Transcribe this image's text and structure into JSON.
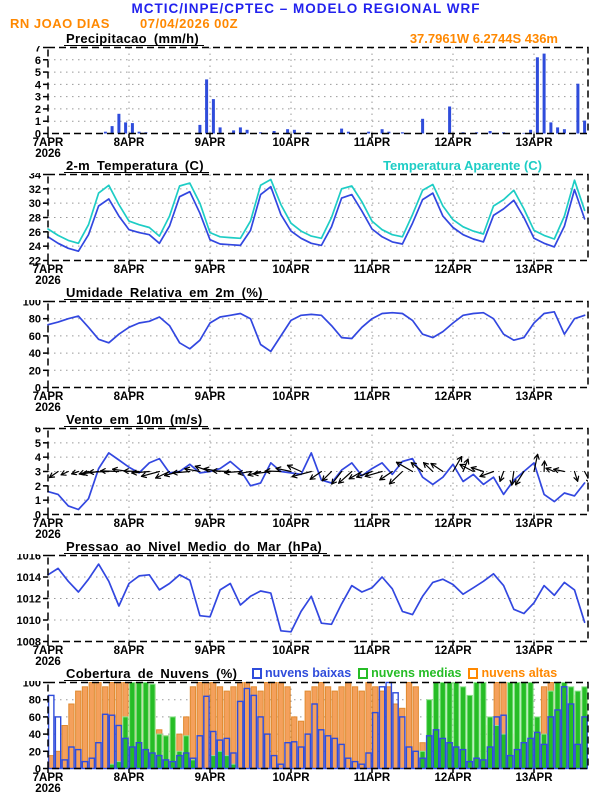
{
  "header": {
    "model_title": "MCTIC/INPE/CPTEC – MODELO REGIONAL WRF",
    "station": "RN JOAO DIAS",
    "run_datetime": "07/04/2026 00Z",
    "location": "37.7961W 6.2744S 436m"
  },
  "colors": {
    "header_blue": "#2222ee",
    "orange": "#ff8800",
    "line_blue": "#3247e0",
    "cyan": "#1ecdc5",
    "bar_blue": "#2f4cdb",
    "green": "#26bd26",
    "green_light": "#8fe48f",
    "cloud_orange": "#f4a05c",
    "cloud_orange_edge": "#e08a30",
    "grid": "#999999"
  },
  "x_axis": {
    "day_labels": [
      "7APR",
      "8APR",
      "9APR",
      "10APR",
      "11APR",
      "12APR",
      "13APR"
    ],
    "year_label": "2026",
    "total_hours": 160
  },
  "chart_data": [
    {
      "id": "precipitation",
      "type": "bar",
      "title": "Precipitacao (mm/h)",
      "ylabel": "mm/h",
      "ylim": [
        0,
        7
      ],
      "ytick_step": 1,
      "step_hours": 2,
      "color_key": "bar_blue",
      "values": [
        0,
        0,
        0,
        0,
        0,
        0,
        0,
        0,
        0.15,
        0.6,
        1.6,
        0.9,
        0.85,
        0.15,
        0.1,
        0,
        0,
        0.05,
        0,
        0,
        0,
        0,
        0.7,
        4.4,
        2.8,
        0.5,
        0,
        0.25,
        0.5,
        0.3,
        0,
        0.1,
        0,
        0.2,
        0,
        0.35,
        0.3,
        0,
        0.1,
        0,
        0,
        0,
        0,
        0.4,
        0.15,
        0,
        0,
        0.15,
        0,
        0.35,
        0.15,
        0,
        0.1,
        0,
        0,
        1.2,
        0,
        0,
        0,
        2.2,
        0,
        0.1,
        0,
        0.1,
        0,
        0.2,
        0,
        0.1,
        0,
        0,
        0.05,
        0.3,
        6.2,
        6.5,
        0.9,
        0.5,
        0.35,
        0,
        4.05,
        1.05
      ]
    },
    {
      "id": "temperature",
      "type": "line",
      "title": "2-m Temperatura (C)",
      "legend_label": "Temperatura Aparente (C)",
      "ylim": [
        22,
        34
      ],
      "ytick_step": 2,
      "step_hours": 3,
      "series": [
        {
          "id": "temperatura-2m",
          "name": "2-m Temperatura (C)",
          "color_key": "line_blue",
          "values": [
            25.3,
            24.4,
            23.7,
            23.3,
            25.6,
            29.6,
            30.6,
            28.2,
            26.3,
            25.9,
            25.6,
            24.4,
            26.8,
            30.9,
            31.6,
            28.6,
            24.9,
            24.3,
            24.2,
            24.1,
            26.2,
            31.2,
            32.3,
            28.4,
            26.1,
            25.1,
            24.4,
            24.1,
            26.7,
            30.7,
            31.2,
            28.9,
            26.4,
            25.3,
            24.6,
            24.3,
            27.2,
            30.5,
            31.4,
            28.2,
            26.6,
            25.6,
            25.0,
            24.6,
            28.3,
            29.2,
            30.4,
            28.0,
            25.1,
            24.4,
            23.9,
            26.8,
            31.9,
            27.8
          ]
        },
        {
          "id": "temperatura-aparente",
          "name": "Temperatura Aparente (C)",
          "color_key": "cyan",
          "values": [
            26.4,
            25.5,
            24.8,
            24.4,
            27.0,
            31.4,
            32.5,
            29.8,
            27.5,
            27.0,
            26.6,
            25.4,
            28.2,
            32.4,
            32.8,
            30.0,
            25.9,
            25.3,
            25.2,
            25.1,
            27.5,
            32.5,
            33.3,
            29.8,
            27.2,
            26.1,
            25.4,
            25.1,
            28.0,
            32.0,
            32.4,
            30.2,
            27.5,
            26.3,
            25.6,
            25.3,
            28.4,
            31.8,
            32.6,
            29.6,
            27.7,
            26.7,
            26.1,
            25.7,
            29.6,
            30.5,
            31.8,
            29.2,
            26.2,
            25.5,
            25.0,
            28.2,
            33.2,
            29.0
          ]
        }
      ]
    },
    {
      "id": "humidity",
      "type": "line",
      "title": "Umidade Relativa em 2m (%)",
      "ylim": [
        0,
        100
      ],
      "ytick_step": 20,
      "step_hours": 3,
      "series": [
        {
          "id": "umidade",
          "name": "Umidade Relativa",
          "color_key": "line_blue",
          "values": [
            73,
            76,
            80,
            83,
            70,
            56,
            52,
            62,
            70,
            75,
            77,
            82,
            72,
            52,
            45,
            55,
            75,
            82,
            84,
            86,
            80,
            50,
            42,
            60,
            78,
            84,
            85,
            84,
            72,
            58,
            57,
            70,
            80,
            86,
            87,
            86,
            78,
            62,
            58,
            65,
            75,
            84,
            86,
            87,
            80,
            62,
            55,
            58,
            75,
            86,
            88,
            62,
            80,
            84
          ]
        }
      ]
    },
    {
      "id": "wind",
      "type": "wind",
      "title": "Vento em 10m (m/s)",
      "ylim": [
        0,
        6
      ],
      "ytick_step": 1,
      "step_hours": 3,
      "arrow_baseline": 3,
      "series": [
        {
          "id": "vento-10m",
          "name": "Vento em 10m",
          "color_key": "line_blue",
          "values": [
            1.6,
            1.4,
            0.6,
            0.35,
            1.1,
            3.2,
            4.3,
            3.8,
            3.3,
            2.9,
            3.6,
            3.9,
            2.9,
            3.0,
            3.5,
            2.9,
            3.0,
            3.2,
            3.7,
            3.1,
            2.0,
            2.2,
            3.6,
            3.0,
            2.9,
            2.8,
            4.3,
            2.4,
            2.2,
            3.1,
            3.6,
            2.7,
            3.2,
            3.6,
            2.8,
            3.7,
            3.9,
            2.6,
            2.1,
            2.6,
            3.5,
            2.3,
            2.8,
            2.1,
            2.6,
            1.4,
            2.4,
            3.0,
            3.6,
            1.4,
            0.9,
            1.5,
            1.3,
            2.2
          ]
        }
      ],
      "arrow_dirs_deg": [
        225,
        215,
        205,
        200,
        195,
        188,
        182,
        178,
        172,
        178,
        185,
        195,
        205,
        195,
        185,
        170,
        160,
        170,
        178,
        184,
        190,
        196,
        188,
        178,
        168,
        156,
        195,
        215,
        225,
        232,
        222,
        210,
        200,
        196,
        214,
        224,
        150,
        142,
        136,
        146,
        60,
        68,
        152,
        162,
        200,
        250,
        262,
        238,
        78,
        88,
        158,
        168,
        288,
        298
      ]
    },
    {
      "id": "pressure",
      "type": "line",
      "title": "Pressao ao Nivel Medio do Mar (hPa)",
      "ylim": [
        1008,
        1016
      ],
      "ytick_step": 2,
      "step_hours": 3,
      "series": [
        {
          "id": "pressao",
          "name": "Pressao ao Nivel Medio do Mar",
          "color_key": "line_blue",
          "values": [
            1014.2,
            1014.8,
            1013.6,
            1012.6,
            1013.8,
            1015.2,
            1013.6,
            1011.3,
            1013.4,
            1014.1,
            1014.2,
            1012.8,
            1013.4,
            1014.2,
            1013.7,
            1010.4,
            1010.3,
            1012.8,
            1013.4,
            1011.4,
            1012.2,
            1012.7,
            1012.5,
            1009.0,
            1008.9,
            1010.8,
            1012.2,
            1009.7,
            1009.6,
            1011.5,
            1013.2,
            1012.6,
            1013.0,
            1014.0,
            1012.9,
            1010.8,
            1010.5,
            1012.2,
            1013.5,
            1013.8,
            1013.3,
            1012.4,
            1013.0,
            1013.6,
            1014.3,
            1013.2,
            1011.0,
            1010.6,
            1011.6,
            1013.2,
            1012.3,
            1013.5,
            1012.8,
            1009.8
          ]
        }
      ]
    },
    {
      "id": "clouds",
      "type": "cloudbar",
      "title": "Cobertura de Nuvens (%)",
      "ylim": [
        0,
        100
      ],
      "ytick_step": 20,
      "step_hours": 2,
      "legend": [
        {
          "label": "nuvens baixas",
          "color_key": "bar_blue"
        },
        {
          "label": "nuvens medias",
          "color_key": "green"
        },
        {
          "label": "nuvens altas",
          "color_key": "orange"
        }
      ],
      "series": [
        {
          "id": "nuvens-altas",
          "name": "nuvens altas",
          "fill_key": "cloud_orange",
          "stroke_key": "cloud_orange_edge",
          "values": [
            15,
            20,
            50,
            75,
            90,
            95,
            100,
            100,
            95,
            100,
            100,
            100,
            100,
            100,
            98,
            95,
            45,
            38,
            36,
            40,
            60,
            95,
            100,
            100,
            100,
            95,
            90,
            95,
            100,
            100,
            95,
            90,
            100,
            100,
            100,
            95,
            60,
            55,
            90,
            95,
            100,
            95,
            90,
            95,
            100,
            95,
            90,
            100,
            95,
            90,
            95,
            75,
            70,
            100,
            95,
            30,
            5,
            0,
            0,
            0,
            0,
            0,
            0,
            0,
            0,
            50,
            100,
            100,
            40,
            0,
            0,
            0,
            0,
            95,
            100,
            95,
            90,
            85,
            80,
            80
          ]
        },
        {
          "id": "nuvens-medias",
          "name": "nuvens medias",
          "fill_key": "green",
          "stroke_key": "green_light",
          "values": [
            0,
            0,
            0,
            0,
            0,
            0,
            0,
            0,
            0,
            5,
            8,
            60,
            100,
            100,
            100,
            98,
            40,
            38,
            60,
            20,
            38,
            10,
            0,
            0,
            15,
            20,
            15,
            5,
            0,
            0,
            0,
            0,
            0,
            0,
            0,
            0,
            0,
            0,
            0,
            0,
            0,
            0,
            0,
            0,
            0,
            0,
            0,
            0,
            0,
            0,
            0,
            0,
            0,
            0,
            0,
            20,
            80,
            100,
            100,
            100,
            100,
            95,
            85,
            100,
            100,
            60,
            50,
            40,
            100,
            100,
            100,
            100,
            60,
            40,
            90,
            100,
            100,
            95,
            90,
            95
          ]
        },
        {
          "id": "nuvens-baixas",
          "name": "nuvens baixas",
          "fill_key": null,
          "stroke_key": "bar_blue",
          "values": [
            85,
            60,
            10,
            25,
            22,
            8,
            12,
            30,
            63,
            62,
            50,
            35,
            25,
            30,
            22,
            18,
            15,
            10,
            8,
            15,
            18,
            12,
            38,
            84,
            43,
            33,
            35,
            18,
            78,
            93,
            85,
            60,
            40,
            15,
            5,
            30,
            31,
            25,
            40,
            75,
            45,
            38,
            35,
            28,
            12,
            8,
            5,
            18,
            65,
            95,
            100,
            88,
            60,
            25,
            20,
            12,
            38,
            45,
            35,
            30,
            25,
            22,
            8,
            12,
            10,
            25,
            60,
            62,
            15,
            22,
            30,
            35,
            42,
            28,
            60,
            68,
            95,
            75,
            28,
            60
          ]
        }
      ]
    }
  ]
}
